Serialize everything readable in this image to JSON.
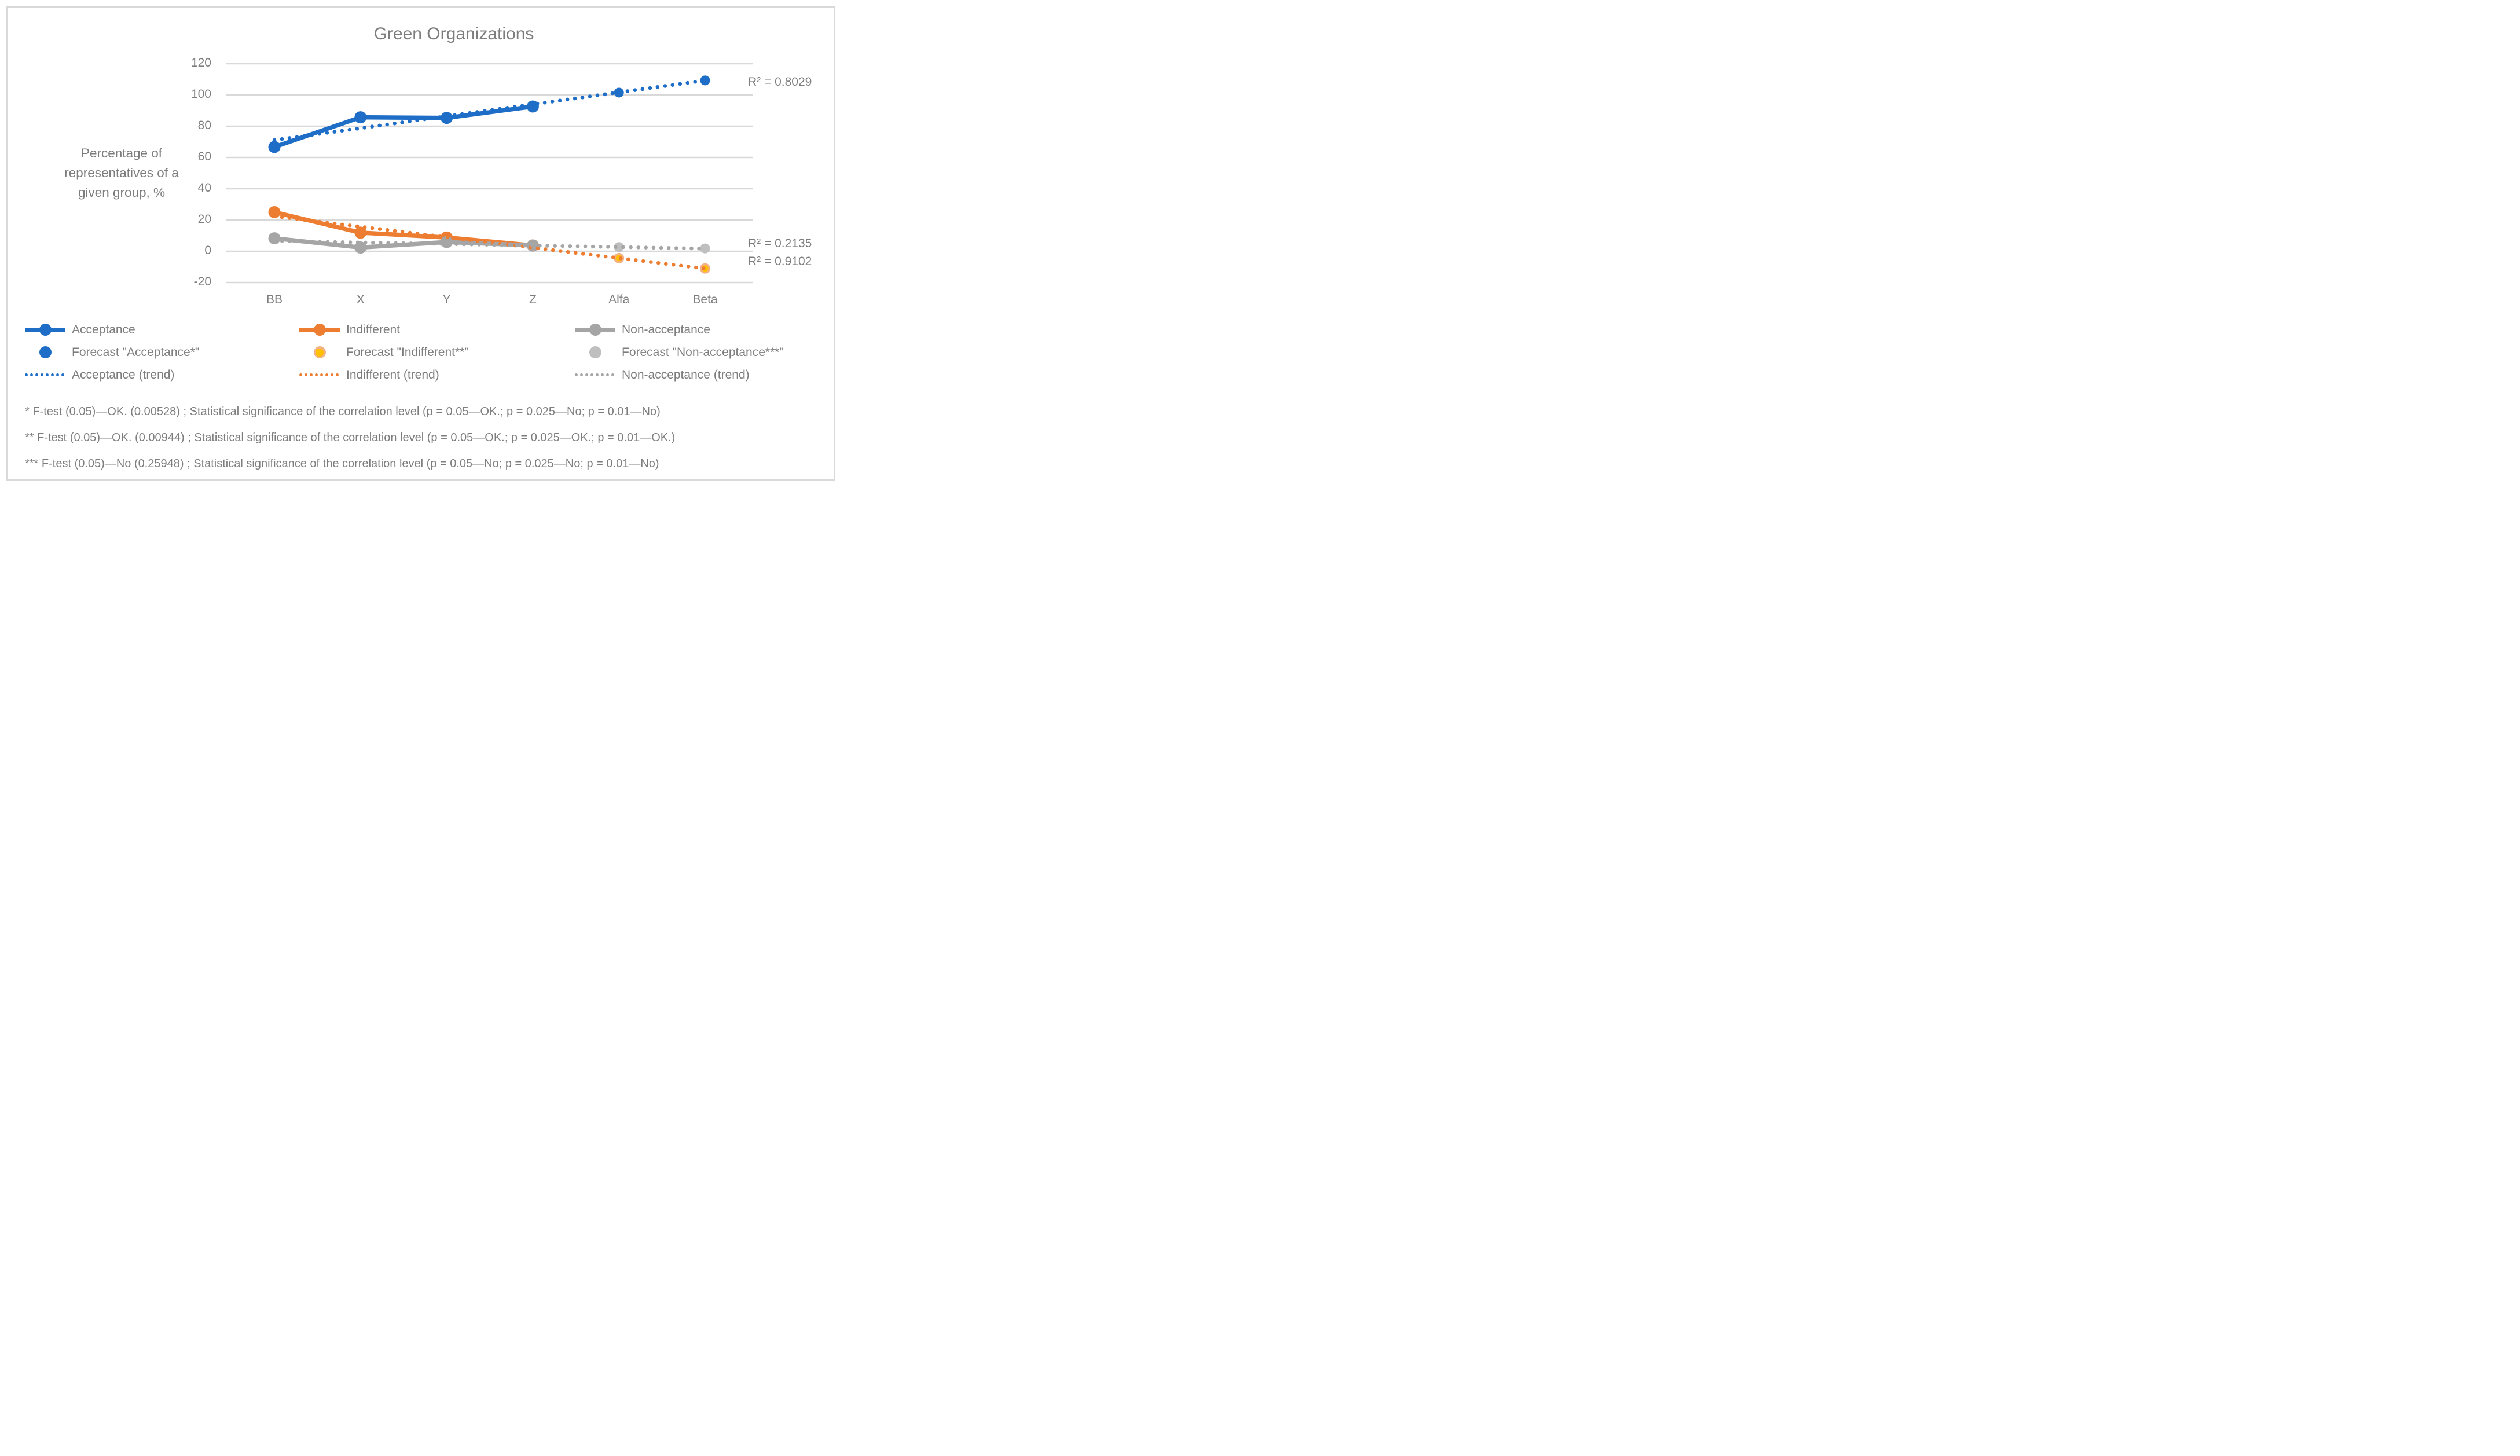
{
  "title": "Green Organizations",
  "y_axis": {
    "title_lines": [
      "Percentage of",
      "representatives of a",
      "given group, %"
    ],
    "ticks": [
      120,
      100,
      80,
      60,
      40,
      20,
      0,
      -20
    ]
  },
  "x_axis": {
    "categories": [
      "BB",
      "X",
      "Y",
      "Z",
      "Alfa",
      "Beta"
    ]
  },
  "annotations": {
    "acceptance_r2": "R² = 0.8029",
    "non_acceptance_r2": "R² = 0.2135",
    "indifferent_r2": "R² = 0.9102"
  },
  "chart_data": {
    "type": "line",
    "categories": [
      "BB",
      "X",
      "Y",
      "Z",
      "Alfa",
      "Beta"
    ],
    "ylim": [
      -20,
      120
    ],
    "grid": true,
    "legend_position": "bottom",
    "series": [
      {
        "name": "Acceptance",
        "type": "line-with-markers",
        "color": "#1E6EC8",
        "x": [
          "BB",
          "X",
          "Y",
          "Z"
        ],
        "values": [
          66.7,
          85.7,
          85.3,
          92.6
        ]
      },
      {
        "name": "Indifferent",
        "type": "line-with-markers",
        "color": "#ED7D31",
        "x": [
          "BB",
          "X",
          "Y",
          "Z"
        ],
        "values": [
          25.0,
          11.9,
          8.8,
          3.7
        ]
      },
      {
        "name": "Non-acceptance",
        "type": "line-with-markers",
        "color": "#A5A5A5",
        "x": [
          "BB",
          "X",
          "Y",
          "Z"
        ],
        "values": [
          8.3,
          2.4,
          5.9,
          3.7
        ]
      },
      {
        "name": "Forecast \"Acceptance*\"",
        "type": "markers-only",
        "color": "#1E6EC8",
        "x": [
          "Alfa",
          "Beta"
        ],
        "values": [
          101.5,
          109.3
        ]
      },
      {
        "name": "Forecast \"Indifferent**\"",
        "type": "markers-only",
        "color": "#FFC000",
        "ring_color": "#F4B183",
        "x": [
          "Alfa",
          "Beta"
        ],
        "values": [
          -4.4,
          -11.0
        ]
      },
      {
        "name": "Forecast \"Non-acceptance***\"",
        "type": "markers-only",
        "color": "#BFBFBF",
        "x": [
          "Alfa",
          "Beta"
        ],
        "values": [
          2.7,
          1.8
        ]
      },
      {
        "name": "Acceptance (trend)",
        "type": "dotted-trend",
        "color": "#1E6EC8",
        "r_squared": 0.8029,
        "trend_from": {
          "x": "BB",
          "value": 71.1
        },
        "trend_to": {
          "x": "Beta",
          "value": 109.3
        }
      },
      {
        "name": "Indifferent (trend)",
        "type": "dotted-trend",
        "color": "#ED7D31",
        "r_squared": 0.9102,
        "trend_from": {
          "x": "BB",
          "value": 22.4
        },
        "trend_to": {
          "x": "Beta",
          "value": -11.1
        }
      },
      {
        "name": "Non-acceptance (trend)",
        "type": "dotted-trend",
        "color": "#A6A6A6",
        "r_squared": 0.2135,
        "trend_from": {
          "x": "BB",
          "value": 6.6
        },
        "trend_to": {
          "x": "Beta",
          "value": 1.7
        }
      }
    ]
  },
  "legend": {
    "columns": [
      {
        "items": [
          {
            "label": "Acceptance",
            "swatch": "line-marker",
            "color": "#1E6EC8"
          },
          {
            "label": "Forecast \"Acceptance*\"",
            "swatch": "marker",
            "color": "#1E6EC8"
          },
          {
            "label": "Acceptance (trend)",
            "swatch": "dotted-line",
            "color": "#1E6EC8"
          }
        ]
      },
      {
        "items": [
          {
            "label": "Indifferent",
            "swatch": "line-marker",
            "color": "#ED7D31"
          },
          {
            "label": "Forecast \"Indifferent**\"",
            "swatch": "marker",
            "color": "#FFC000",
            "ring_color": "#F4B183"
          },
          {
            "label": "Indifferent (trend)",
            "swatch": "dotted-line",
            "color": "#ED7D31"
          }
        ]
      },
      {
        "items": [
          {
            "label": "Non-acceptance",
            "swatch": "line-marker",
            "color": "#A5A5A5"
          },
          {
            "label": "Forecast \"Non-acceptance***\"",
            "swatch": "marker",
            "color": "#BFBFBF"
          },
          {
            "label": "Non-acceptance (trend)",
            "swatch": "dotted-line",
            "color": "#A6A6A6"
          }
        ]
      }
    ]
  },
  "footnotes": [
    "* F-test (0.05)—OK. (0.00528) ; Statistical significance of the correlation level (p = 0.05—OK.; p = 0.025—No; p = 0.01—No)",
    "** F-test (0.05)—OK. (0.00944) ; Statistical significance of the correlation level (p = 0.05—OK.; p = 0.025—OK.; p = 0.01—OK.)",
    "*** F-test (0.05)—No (0.25948) ; Statistical significance of the correlation level (p = 0.05—No; p = 0.025—No; p = 0.01—No)"
  ],
  "colors": {
    "acceptance": "#1E6EC8",
    "indifferent": "#ED7D31",
    "non_acceptance": "#A5A5A5",
    "forecast_indifferent_fill": "#FFC000",
    "forecast_indifferent_ring": "#F4B183",
    "forecast_non_acceptance": "#BFBFBF",
    "gridline": "#D9D9D9",
    "text": "#7D7D7D"
  }
}
